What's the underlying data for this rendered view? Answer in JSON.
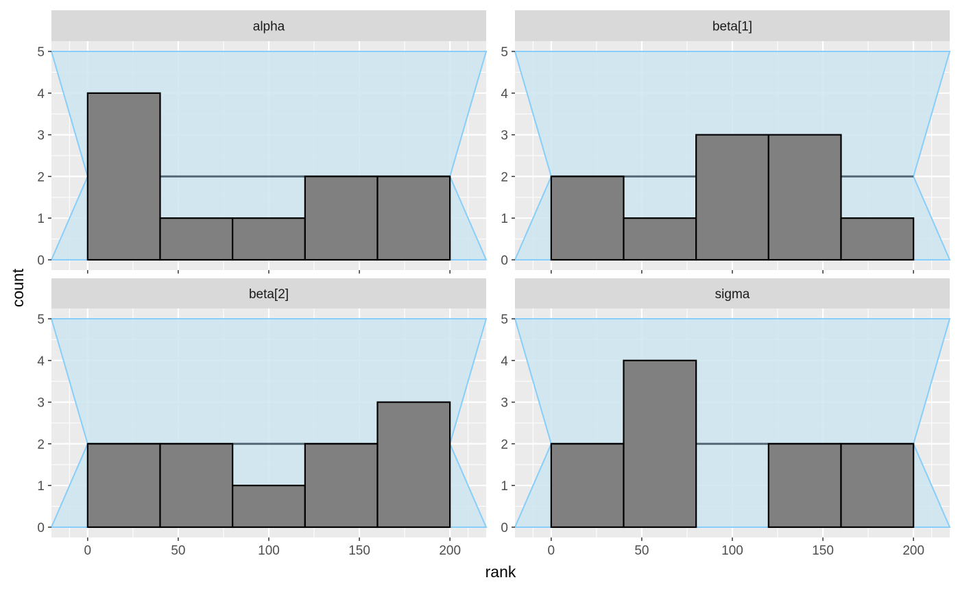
{
  "chart_data": {
    "type": "bar",
    "subtype": "faceted rank histogram",
    "xlabel": "rank",
    "ylabel": "count",
    "xlim": [
      -20,
      220
    ],
    "ylim": [
      0,
      5
    ],
    "x_ticks": [
      0,
      50,
      100,
      150,
      200
    ],
    "y_ticks": [
      0,
      1,
      2,
      3,
      4,
      5
    ],
    "bin_edges": [
      0,
      40,
      80,
      120,
      160,
      200
    ],
    "expected_count": 2,
    "reference_band": {
      "polygon": [
        [
          -20,
          0
        ],
        [
          0,
          2
        ],
        [
          -20,
          5
        ],
        [
          220,
          5
        ],
        [
          200,
          2
        ],
        [
          220,
          0
        ]
      ]
    },
    "grid": true,
    "colors": {
      "bar_fill": "#808080",
      "bar_stroke": "#000000",
      "band_fill": "#cde5f0",
      "band_stroke": "#87cefa",
      "expected_line": "#566b78",
      "panel_background": "#ebebeb",
      "strip_background": "#d9d9d9"
    },
    "facets": [
      {
        "label": "alpha",
        "values": [
          4,
          1,
          1,
          2,
          2
        ]
      },
      {
        "label": "beta[1]",
        "values": [
          2,
          1,
          3,
          3,
          1
        ]
      },
      {
        "label": "beta[2]",
        "values": [
          2,
          2,
          1,
          2,
          3
        ]
      },
      {
        "label": "sigma",
        "values": [
          2,
          4,
          0,
          2,
          2
        ]
      }
    ]
  }
}
